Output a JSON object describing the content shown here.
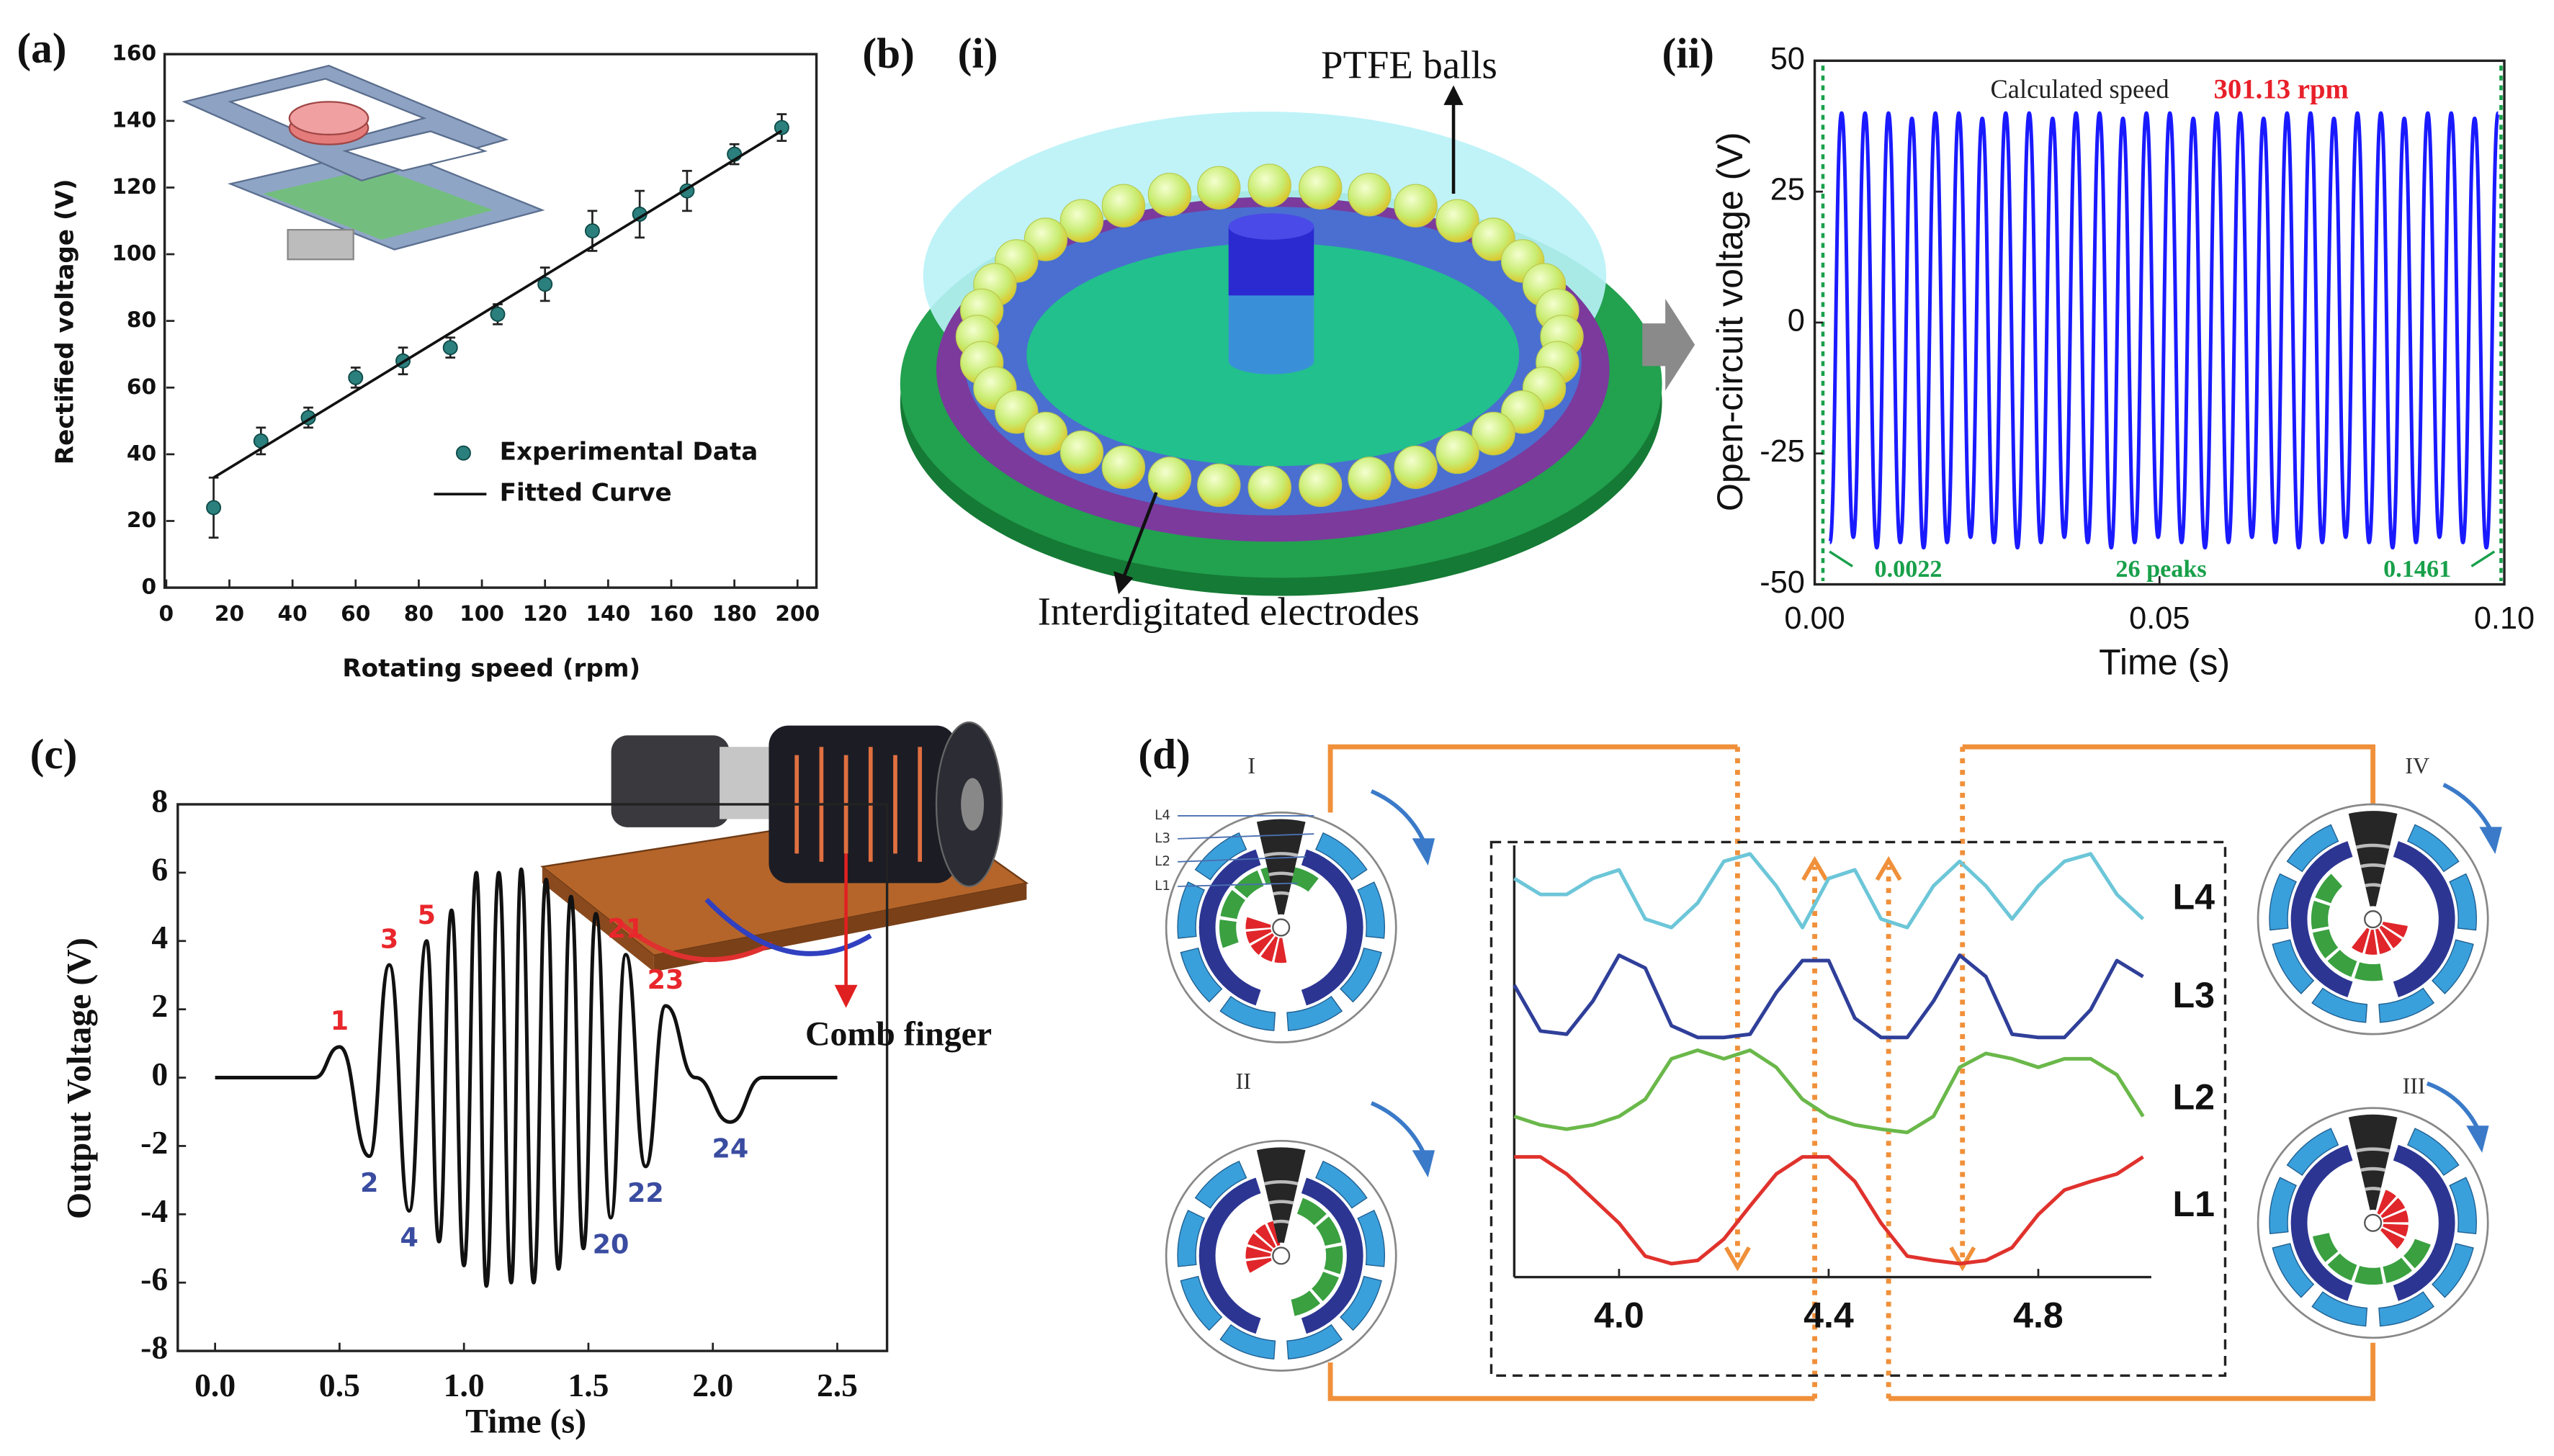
{
  "chart_data": [
    {
      "type": "scatter",
      "panel": "(a)",
      "xlabel": "Rotating speed (rpm)",
      "ylabel": "Rectified voltage (V)",
      "xlim": [
        0,
        206
      ],
      "xticks": [
        0,
        20,
        40,
        60,
        80,
        100,
        120,
        140,
        160,
        180,
        200
      ],
      "ylim": [
        0,
        160
      ],
      "yticks": [
        0,
        20,
        40,
        60,
        80,
        100,
        120,
        140,
        160
      ],
      "legend": "lower right",
      "series": [
        {
          "name": "Experimental Data",
          "mode": "markers",
          "color": "#2b7f7c",
          "x": [
            15,
            30,
            45,
            60,
            75,
            90,
            105,
            120,
            135,
            150,
            165,
            180,
            195
          ],
          "values": [
            24,
            44,
            51,
            63,
            68,
            72,
            82,
            91,
            107,
            112,
            119,
            130,
            138
          ],
          "errors": [
            9,
            4,
            3,
            3,
            4,
            3,
            3,
            5,
            6,
            7,
            6,
            3,
            4
          ]
        },
        {
          "name": "Fitted Curve",
          "mode": "line",
          "color": "#111111",
          "x": [
            15,
            195
          ],
          "values": [
            33,
            137
          ]
        }
      ]
    },
    {
      "type": "line",
      "panel": "(ii)",
      "smooth": true,
      "xlabel": "Time (s)",
      "ylabel": "Open-circuit voltage (V)",
      "xlim": [
        0,
        0.1
      ],
      "xticks": [
        {
          "value": 0,
          "label": "0.00"
        },
        0.05,
        {
          "value": 0.1,
          "label": "0.10"
        }
      ],
      "ylim": [
        -50,
        50
      ],
      "yticks": [
        -50,
        -25,
        0,
        25,
        50
      ],
      "annotations": [
        "Calculated speed",
        "301.13 rpm",
        "0.0022",
        "26 peaks",
        "0.1461"
      ],
      "series": [
        {
          "color": "#1a1aff",
          "x": [
            0.0022,
            0.0039,
            0.0056,
            0.0073,
            0.009,
            0.0107,
            0.0124,
            0.0141,
            0.0158,
            0.0175,
            0.0192,
            0.0209,
            0.0226,
            0.0243,
            0.026,
            0.0277,
            0.0294,
            0.0311,
            0.0328,
            0.0345,
            0.0362,
            0.0379,
            0.0396,
            0.0413,
            0.043,
            0.0447,
            0.0464,
            0.0481,
            0.0498,
            0.0515,
            0.0532,
            0.0549,
            0.0566,
            0.0583,
            0.06,
            0.0617,
            0.0634,
            0.0651,
            0.0668,
            0.0685,
            0.0702,
            0.0719,
            0.0736,
            0.0753,
            0.077,
            0.0787,
            0.0804,
            0.0821,
            0.0838,
            0.0855,
            0.0872,
            0.0889,
            0.0906,
            0.0923,
            0.094,
            0.0957,
            0.0974,
            0.0991
          ],
          "values": [
            -42,
            40,
            -41,
            40,
            -43,
            40,
            -42,
            39,
            -43,
            40,
            -42,
            40,
            -41,
            39,
            -42,
            40,
            -43,
            40,
            -42,
            39,
            -41,
            40,
            -42,
            40,
            -43,
            39,
            -42,
            40,
            -41,
            40,
            -42,
            39,
            -43,
            40,
            -42,
            40,
            -41,
            39,
            -42,
            40,
            -43,
            40,
            -42,
            39,
            -41,
            40,
            -42,
            40,
            -43,
            39,
            -42,
            40,
            -41,
            40,
            -42,
            39,
            -43,
            40
          ]
        }
      ]
    },
    {
      "type": "line",
      "panel": "(c)",
      "smooth": true,
      "xlabel": "Time (s)",
      "ylabel": "Output Voltage (V)",
      "xlim": [
        -0.15,
        2.7
      ],
      "xticks": [
        {
          "value": 0,
          "label": "0.0"
        },
        0.5,
        {
          "value": 1,
          "label": "1.0"
        },
        1.5,
        {
          "value": 2,
          "label": "2.0"
        },
        2.5
      ],
      "ylim": [
        -8,
        8
      ],
      "yticks": [
        -8,
        -6,
        -4,
        -2,
        0,
        2,
        4,
        6,
        8
      ],
      "annotations": [
        "Comb finger"
      ],
      "label_colors": {
        "peak": "#e8262b",
        "trough": "#3a4ca0"
      },
      "series": [
        {
          "color": "#111111",
          "x": [
            0,
            0.4,
            0.5,
            0.62,
            0.7,
            0.78,
            0.85,
            0.9,
            0.95,
            1.0,
            1.05,
            1.09,
            1.14,
            1.19,
            1.23,
            1.28,
            1.33,
            1.38,
            1.43,
            1.48,
            1.53,
            1.59,
            1.65,
            1.73,
            1.81,
            1.93,
            2.07,
            2.2,
            2.5
          ],
          "values": [
            0,
            0,
            0.9,
            -2.3,
            3.3,
            -3.9,
            4,
            -4.8,
            4.9,
            -5.5,
            6,
            -6.1,
            6,
            -6,
            6.1,
            -6,
            5.8,
            -5.6,
            5.3,
            -5,
            4.8,
            -4.1,
            3.6,
            -2.6,
            2.1,
            0,
            -1.3,
            0,
            0
          ],
          "point_labels": [
            null,
            null,
            "1",
            "2",
            "3",
            "4",
            "5",
            null,
            null,
            null,
            null,
            null,
            null,
            null,
            null,
            null,
            null,
            null,
            null,
            null,
            null,
            "20",
            "21",
            "22",
            "23",
            null,
            "24",
            null,
            null
          ]
        }
      ]
    },
    {
      "type": "line",
      "panel": "(d)",
      "smooth": false,
      "legend": "right",
      "xlim": [
        3.8,
        5.0
      ],
      "xticks": [
        {
          "value": 4,
          "label": "4.0"
        },
        4.4,
        4.8
      ],
      "ylim": [
        0,
        4
      ],
      "series": [
        {
          "name": "L4",
          "color": "#6cc6d8",
          "x": [
            3.8,
            3.85,
            3.9,
            3.95,
            4,
            4.05,
            4.1,
            4.15,
            4.2,
            4.25,
            4.3,
            4.35,
            4.4,
            4.45,
            4.5,
            4.55,
            4.6,
            4.65,
            4.7,
            4.75,
            4.8,
            4.85,
            4.9,
            4.95,
            5
          ],
          "values": [
            3.69,
            3.54,
            3.54,
            3.69,
            3.77,
            3.31,
            3.23,
            3.46,
            3.85,
            3.92,
            3.62,
            3.23,
            3.69,
            3.77,
            3.31,
            3.23,
            3.62,
            3.85,
            3.62,
            3.31,
            3.62,
            3.85,
            3.92,
            3.54,
            3.31
          ]
        },
        {
          "name": "L3",
          "color": "#2f3f99",
          "x": [
            3.8,
            3.85,
            3.9,
            3.95,
            4,
            4.05,
            4.1,
            4.15,
            4.2,
            4.25,
            4.3,
            4.35,
            4.4,
            4.45,
            4.5,
            4.55,
            4.6,
            4.65,
            4.7,
            4.75,
            4.8,
            4.85,
            4.9,
            4.95,
            5
          ],
          "values": [
            2.69,
            2.26,
            2.23,
            2.54,
            2.97,
            2.85,
            2.31,
            2.2,
            2.2,
            2.23,
            2.62,
            2.92,
            2.92,
            2.38,
            2.2,
            2.2,
            2.54,
            2.97,
            2.77,
            2.23,
            2.2,
            2.2,
            2.46,
            2.92,
            2.77
          ]
        },
        {
          "name": "L2",
          "color": "#6ab84a",
          "x": [
            3.8,
            3.85,
            3.9,
            3.95,
            4,
            4.05,
            4.1,
            4.15,
            4.2,
            4.25,
            4.3,
            4.35,
            4.4,
            4.45,
            4.5,
            4.55,
            4.6,
            4.65,
            4.7,
            4.75,
            4.8,
            4.85,
            4.9,
            4.95,
            5
          ],
          "values": [
            1.46,
            1.38,
            1.34,
            1.38,
            1.46,
            1.62,
            2,
            2.08,
            2,
            2.08,
            1.92,
            1.62,
            1.46,
            1.38,
            1.34,
            1.31,
            1.46,
            1.92,
            2.05,
            2,
            1.92,
            2,
            2,
            1.85,
            1.46
          ]
        },
        {
          "name": "L1",
          "color": "#e0322d",
          "x": [
            3.8,
            3.85,
            3.9,
            3.95,
            4,
            4.05,
            4.1,
            4.15,
            4.2,
            4.25,
            4.3,
            4.35,
            4.4,
            4.45,
            4.5,
            4.55,
            4.6,
            4.65,
            4.7,
            4.75,
            4.8,
            4.85,
            4.9,
            4.95,
            5
          ],
          "values": [
            1.08,
            1.08,
            0.92,
            0.69,
            0.46,
            0.15,
            0.08,
            0.11,
            0.31,
            0.62,
            0.92,
            1.08,
            1.08,
            0.85,
            0.46,
            0.15,
            0.11,
            0.08,
            0.11,
            0.23,
            0.54,
            0.77,
            0.85,
            0.92,
            1.08
          ]
        }
      ]
    }
  ],
  "figure": {
    "panel_b": "(b)",
    "panel_b_i": "(i)",
    "b_i_labels": [
      "PTFE balls",
      "Interdigitated electrodes"
    ],
    "d_stages": [
      "I",
      "II",
      "III",
      "IV"
    ],
    "d_layers": [
      "L4",
      "L3",
      "L2",
      "L1"
    ]
  }
}
